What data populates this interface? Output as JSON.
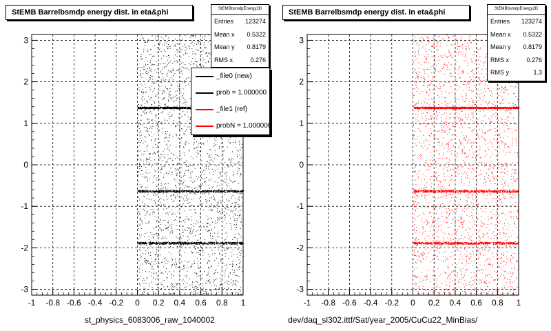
{
  "panels": [
    {
      "title": "StEMB Barrelbsmdp energy dist. in eta&phi",
      "xtitle": "st_physics_6083006_raw_1040002",
      "marker_color": "#000000",
      "stats": {
        "name": "StEMBbsmdpEnergy2D",
        "rows": [
          {
            "label": "Entries",
            "value": "123274"
          },
          {
            "label": "Mean x",
            "value": "0.5322"
          },
          {
            "label": "Mean y",
            "value": "0.8179"
          },
          {
            "label": "RMS x",
            "value": "0.276"
          }
        ]
      },
      "legend": [
        {
          "label": "_file0 (new)",
          "color": "#000000"
        },
        {
          "label": "prob = 1.000000",
          "color": "#000000"
        },
        {
          "label": "_file1 (ref)",
          "color": "#ff0000"
        },
        {
          "label": "probN = 1.000000",
          "color": "#ff0000"
        }
      ]
    },
    {
      "title": "StEMB Barrelbsmdp energy dist. in eta&phi",
      "xtitle": "dev/daq_sl302.ittf/Sat/year_2005/CuCu22_MinBias/",
      "marker_color": "#ff0000",
      "stats": {
        "name": "StEMBbsmdpEnergy2D",
        "rows": [
          {
            "label": "Entries",
            "value": "123274"
          },
          {
            "label": "Mean x",
            "value": "0.5322"
          },
          {
            "label": "Mean y",
            "value": "0.8179"
          },
          {
            "label": "RMS x",
            "value": "0.276"
          },
          {
            "label": "RMS y",
            "value": "1.3"
          }
        ]
      },
      "legend": []
    }
  ],
  "footer": "",
  "chart_data": [
    {
      "type": "scatter",
      "title": "StEMB Barrelbsmdp energy dist. in eta&phi",
      "xlabel": "st_physics_6083006_raw_1040002",
      "ylabel": "",
      "xlim": [
        -1,
        1
      ],
      "ylim": [
        -3.14,
        3.14
      ],
      "xticks": [
        "-1",
        "-0.8",
        "-0.6",
        "-0.4",
        "-0.2",
        "0",
        "0.2",
        "0.4",
        "0.6",
        "0.8",
        "1"
      ],
      "yticks": [
        "-3",
        "-2",
        "-1",
        "0",
        "1",
        "2",
        "3"
      ],
      "grid": true,
      "point_x_range": [
        0,
        1
      ],
      "dense_bands_y": [
        1.38,
        -0.63,
        -1.88
      ],
      "series": [
        {
          "name": "_file0 (new)",
          "color": "#000000"
        }
      ]
    },
    {
      "type": "scatter",
      "title": "StEMB Barrelbsmdp energy dist. in eta&phi",
      "xlabel": "dev/daq_sl302.ittf/Sat/year_2005/CuCu22_MinBias/",
      "ylabel": "",
      "xlim": [
        -1,
        1
      ],
      "ylim": [
        -3.14,
        3.14
      ],
      "xticks": [
        "-1",
        "-0.8",
        "-0.6",
        "-0.4",
        "-0.2",
        "0",
        "0.2",
        "0.4",
        "0.6",
        "0.8",
        "1"
      ],
      "yticks": [
        "-3",
        "-2",
        "-1",
        "0",
        "1",
        "2",
        "3"
      ],
      "grid": true,
      "point_x_range": [
        0,
        1
      ],
      "dense_bands_y": [
        1.38,
        -0.63,
        -1.88
      ],
      "series": [
        {
          "name": "_file1 (ref)",
          "color": "#ff0000"
        }
      ]
    }
  ]
}
